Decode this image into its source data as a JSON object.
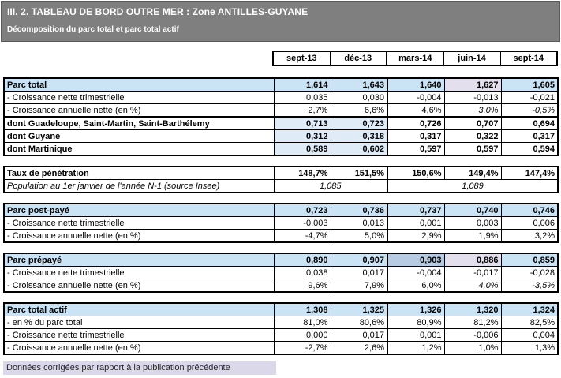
{
  "header": {
    "title": "III. 2. TABLEAU DE BORD OUTRE MER : Zone ANTILLES-GUYANE",
    "subtitle": "Décomposition du parc total et parc total actif"
  },
  "columns": [
    "sept-13",
    "déc-13",
    "mars-14",
    "juin-14",
    "sept-14"
  ],
  "blocks": [
    {
      "name": "parc-total",
      "attached": false,
      "rows": [
        {
          "label": "Parc total",
          "bold": true,
          "label_bg": "b",
          "bg": [
            "b",
            "b",
            "b",
            "l",
            "b"
          ],
          "values": [
            "1,614",
            "1,643",
            "1,640",
            "1,627",
            "1,605"
          ]
        },
        {
          "label": "- Croissance nette trimestrielle",
          "bold": false,
          "label_bg": "",
          "bg": [
            "",
            "",
            "",
            "",
            ""
          ],
          "values": [
            "0,035",
            "0,030",
            "-0,004",
            "-0,013",
            "-0,021"
          ]
        },
        {
          "label": "- Croissance annuelle nette (en %)",
          "bold": false,
          "label_bg": "",
          "bg": [
            "",
            "",
            "",
            "",
            ""
          ],
          "values": [
            "2,7%",
            "6,6%",
            "4,6%",
            "3,0%",
            "-0,5%"
          ],
          "italic": [
            3,
            4
          ]
        }
      ]
    },
    {
      "name": "parc-total-detail",
      "attached": true,
      "rows": [
        {
          "label": "dont Guadeloupe, Saint-Martin, Saint-Barthélemy",
          "bold": true,
          "label_bg": "",
          "bg": [
            "t",
            "t",
            "",
            "",
            ""
          ],
          "values": [
            "0,713",
            "0,723",
            "0,726",
            "0,707",
            "0,694"
          ]
        },
        {
          "label": "dont Guyane",
          "bold": true,
          "label_bg": "",
          "bg": [
            "t",
            "t",
            "",
            "",
            ""
          ],
          "values": [
            "0,312",
            "0,318",
            "0,317",
            "0,322",
            "0,317"
          ]
        },
        {
          "label": "dont Martinique",
          "bold": true,
          "label_bg": "",
          "bg": [
            "t",
            "t",
            "",
            "",
            ""
          ],
          "values": [
            "0,589",
            "0,602",
            "0,597",
            "0,597",
            "0,594"
          ]
        }
      ]
    },
    {
      "name": "taux-de-penetration",
      "attached": false,
      "rows": [
        {
          "label": "Taux de pénétration",
          "bold": true,
          "label_bg": "",
          "bg": [
            "",
            "",
            "",
            "",
            ""
          ],
          "values": [
            "148,7%",
            "151,5%",
            "150,6%",
            "149,4%",
            "147,4%"
          ]
        },
        {
          "type": "population",
          "label": "Population au 1er janvier de l'année N-1 (source Insee)",
          "spans": [
            "1,085",
            "1,089"
          ]
        }
      ]
    },
    {
      "name": "parc-post-paye",
      "attached": false,
      "rows": [
        {
          "label": "Parc post-payé",
          "bold": true,
          "label_bg": "b",
          "bg": [
            "b",
            "b",
            "b",
            "b",
            "b"
          ],
          "values": [
            "0,723",
            "0,736",
            "0,737",
            "0,740",
            "0,746"
          ]
        },
        {
          "label": "- Croissance nette trimestrielle",
          "bold": false,
          "label_bg": "",
          "bg": [
            "",
            "",
            "",
            "",
            ""
          ],
          "values": [
            "-0,003",
            "0,013",
            "0,001",
            "0,003",
            "0,006"
          ]
        },
        {
          "label": "- Croissance annuelle nette (en %)",
          "bold": false,
          "label_bg": "",
          "bg": [
            "",
            "",
            "",
            "",
            ""
          ],
          "values": [
            "-4,7%",
            "5,0%",
            "2,9%",
            "1,9%",
            "3,2%"
          ]
        }
      ]
    },
    {
      "name": "parc-prepaye",
      "attached": false,
      "rows": [
        {
          "label": "Parc prépayé",
          "bold": true,
          "label_bg": "b",
          "bg": [
            "b",
            "b",
            "d",
            "l",
            "b"
          ],
          "values": [
            "0,890",
            "0,907",
            "0,903",
            "0,886",
            "0,859"
          ]
        },
        {
          "label": "- Croissance nette trimestrielle",
          "bold": false,
          "label_bg": "",
          "bg": [
            "",
            "",
            "",
            "",
            ""
          ],
          "values": [
            "0,038",
            "0,017",
            "-0,004",
            "-0,017",
            "-0,028"
          ]
        },
        {
          "label": "- Croissance annuelle nette (en %)",
          "bold": false,
          "label_bg": "",
          "bg": [
            "",
            "",
            "",
            "",
            ""
          ],
          "values": [
            "9,6%",
            "7,9%",
            "6,0%",
            "4,0%",
            "-3,5%"
          ],
          "italic": [
            3,
            4
          ]
        }
      ]
    },
    {
      "name": "parc-total-actif",
      "attached": false,
      "rows": [
        {
          "label": "Parc total actif",
          "bold": true,
          "label_bg": "b",
          "bg": [
            "b",
            "b",
            "b",
            "b",
            "b"
          ],
          "values": [
            "1,308",
            "1,325",
            "1,326",
            "1,320",
            "1,324"
          ]
        },
        {
          "label": "- en % du parc total",
          "bold": false,
          "label_bg": "",
          "bg": [
            "",
            "",
            "",
            "",
            ""
          ],
          "values": [
            "81,0%",
            "80,6%",
            "80,9%",
            "81,2%",
            "82,5%"
          ]
        },
        {
          "label": "- Croissance nette trimestrielle",
          "bold": false,
          "label_bg": "",
          "bg": [
            "",
            "",
            "",
            "",
            ""
          ],
          "values": [
            "0,000",
            "0,017",
            "0,001",
            "-0,006",
            "0,004"
          ]
        },
        {
          "label": "- Croissance annuelle nette (en %)",
          "bold": false,
          "label_bg": "",
          "bg": [
            "",
            "",
            "",
            "",
            ""
          ],
          "values": [
            "-2,7%",
            "2,6%",
            "1,2%",
            "1,0%",
            "1,3%"
          ]
        }
      ]
    }
  ],
  "footer": {
    "legend": "Données corrigées par rapport à la publication précédente"
  },
  "colors": {
    "band_bg": "#7f7f7f",
    "band_border": "#5a5a5a",
    "text_on_band": "#ffffff",
    "cell_blue": "#cbe4f5",
    "cell_blue_light": "#dfecf8",
    "cell_blue_corrected": "#b7cce3",
    "cell_lavender_corrected": "#e4dfec",
    "footer_bg": "#dbd8ea",
    "grid": "#000000"
  }
}
